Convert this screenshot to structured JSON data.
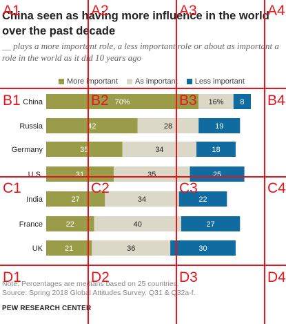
{
  "title": "China seen as having more influence in the world over the past decade",
  "subtitle": "__ plays a more important role, a less important role or about as important a role in the world as it did 10 years ago",
  "colors": {
    "more": "#9a9c4a",
    "same": "#dcd8c7",
    "less": "#0f6ba0",
    "grid": "#e8141b"
  },
  "legend": [
    "More important",
    "As important",
    "Less important"
  ],
  "chart_data": {
    "type": "bar",
    "stacked": true,
    "orientation": "horizontal",
    "categories": [
      "China",
      "Russia",
      "Germany",
      "U.S.",
      "India",
      "France",
      "UK"
    ],
    "series": [
      {
        "name": "More important",
        "values": [
          70,
          42,
          35,
          31,
          27,
          22,
          21
        ],
        "labels": [
          "70%",
          "42",
          "35",
          "31",
          "27",
          "22",
          "21"
        ]
      },
      {
        "name": "As important",
        "values": [
          16,
          28,
          34,
          35,
          34,
          40,
          36
        ],
        "labels": [
          "16%",
          "28",
          "34",
          "35",
          "34",
          "40",
          "36"
        ]
      },
      {
        "name": "Less important",
        "values": [
          8,
          19,
          18,
          25,
          22,
          27,
          30
        ],
        "labels": [
          "8",
          "19",
          "18",
          "25",
          "22",
          "27",
          "30"
        ]
      }
    ],
    "xlim": [
      0,
      100
    ]
  },
  "note": "Note: Percentages are medians based on 25 countries.",
  "source": "Source: Spring 2018 Global Attitudes Survey. Q31 & Q32a-f.",
  "brand": "PEW RESEARCH CENTER",
  "grid_labels": [
    "A1",
    "A2",
    "A3",
    "A4",
    "B1",
    "B2",
    "B3",
    "B4",
    "C1",
    "C2",
    "C3",
    "C4",
    "D1",
    "D2",
    "D3",
    "D4"
  ]
}
